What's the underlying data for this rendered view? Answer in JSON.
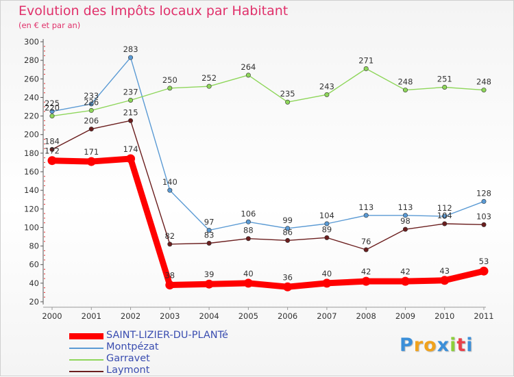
{
  "chart_data": {
    "type": "line",
    "title": "Evolution des Impôts locaux par Habitant",
    "subtitle": "(en € et par an)",
    "xlabel": "",
    "ylabel": "",
    "ylim": [
      20,
      300
    ],
    "yticks": [
      20,
      40,
      60,
      80,
      100,
      120,
      140,
      160,
      180,
      200,
      220,
      240,
      260,
      280,
      300
    ],
    "categories": [
      "2000",
      "2001",
      "2002",
      "2003",
      "2004",
      "2005",
      "2006",
      "2007",
      "2008",
      "2009",
      "2010",
      "2011"
    ],
    "grid": false,
    "legend_position": "bottom-left",
    "series": [
      {
        "name": "SAINT-LIZIER-DU-PLANTé",
        "color": "#ff0000",
        "emphasis": true,
        "values": [
          172,
          171,
          174,
          38,
          39,
          40,
          36,
          40,
          42,
          42,
          43,
          53
        ]
      },
      {
        "name": "Montpézat",
        "color": "#5a9ad4",
        "emphasis": false,
        "values": [
          225,
          233,
          283,
          140,
          97,
          106,
          99,
          104,
          113,
          113,
          112,
          128
        ]
      },
      {
        "name": "Garravet",
        "color": "#8ed65a",
        "emphasis": false,
        "values": [
          220,
          226,
          237,
          250,
          252,
          264,
          235,
          243,
          271,
          248,
          251,
          248
        ]
      },
      {
        "name": "Laymont",
        "color": "#6b1e1e",
        "emphasis": false,
        "values": [
          184,
          206,
          215,
          82,
          83,
          88,
          86,
          89,
          76,
          98,
          104,
          103
        ]
      }
    ]
  },
  "brand": {
    "letters": [
      "P",
      "r",
      "o",
      "x",
      "i",
      "t",
      "i"
    ],
    "colors": [
      "#3b8fd9",
      "#f0a21d",
      "#f0a21d",
      "#3b8fd9",
      "#8ccf3a",
      "#e8404a",
      "#3b8fd9"
    ]
  }
}
